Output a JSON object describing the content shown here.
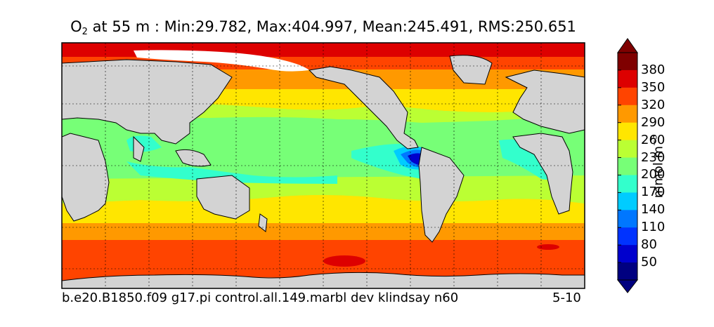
{
  "title": {
    "var_main": "O",
    "var_sub": "2",
    "rest": " at 55 m : Min:29.782, Max:404.997, Mean:245.491, RMS:250.651"
  },
  "footer": {
    "case_name": "b.e20.B1850.f09 g17.pi control.all.149.marbl dev klindsay n60",
    "years": "5-10"
  },
  "colorbar": {
    "unit_main": "mmol m",
    "unit_sup": "−3",
    "levels": [
      {
        "value": "50",
        "color": "#000080"
      },
      {
        "value": "80",
        "color": "#0000CD"
      },
      {
        "value": "110",
        "color": "#0033FF"
      },
      {
        "value": "140",
        "color": "#0077FF"
      },
      {
        "value": "170",
        "color": "#00CCFF"
      },
      {
        "value": "200",
        "color": "#33FFCC"
      },
      {
        "value": "230",
        "color": "#77FF77"
      },
      {
        "value": "260",
        "color": "#BBFF33"
      },
      {
        "value": "290",
        "color": "#FFE600"
      },
      {
        "value": "320",
        "color": "#FF9900"
      },
      {
        "value": "350",
        "color": "#FF4400"
      },
      {
        "value": "380",
        "color": "#DD0000"
      }
    ],
    "under_color": "#000080",
    "over_color": "#7F0000"
  },
  "map": {
    "land_color": "#D3D3D3",
    "ice_color": "#FFFFFF",
    "gridlines": "dotted"
  }
}
